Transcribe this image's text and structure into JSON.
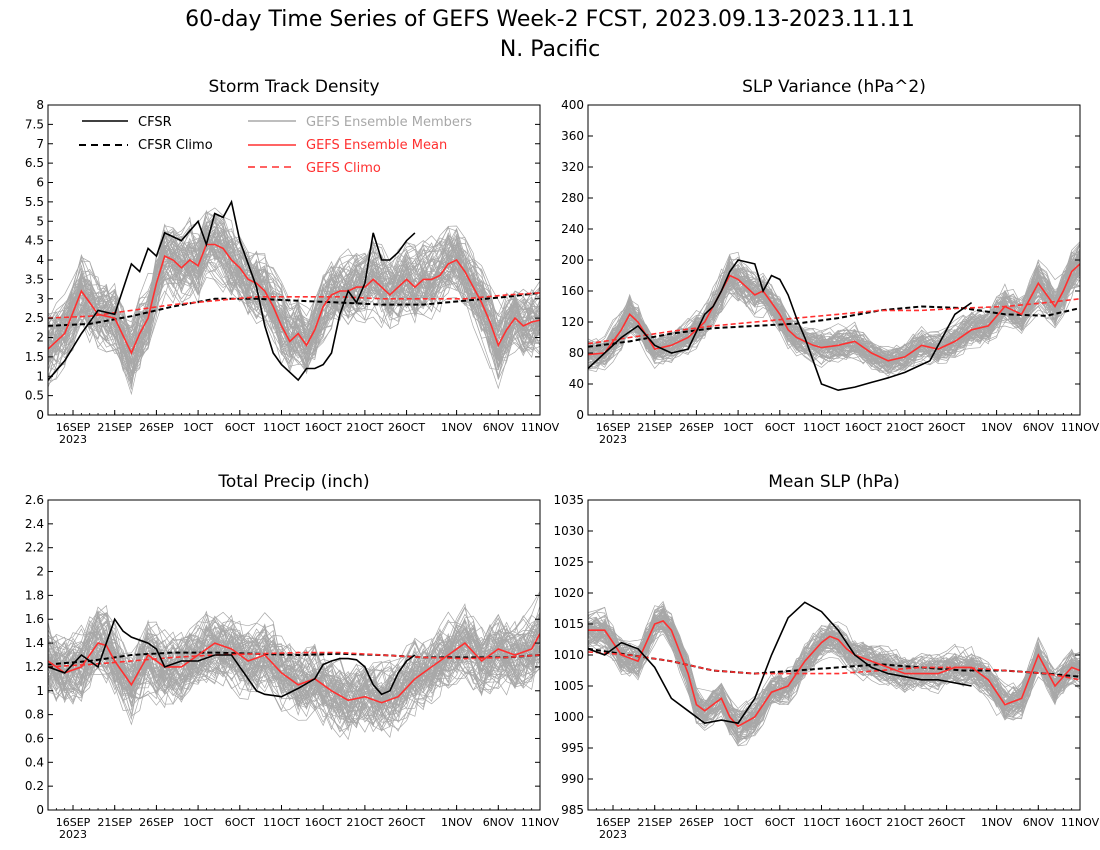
{
  "figure": {
    "title_line1": "60-day Time Series of GEFS Week-2 FCST, 2023.09.13-2023.11.11",
    "title_line2": "N. Pacific"
  },
  "legend": {
    "cfsr": "CFSR",
    "cfsr_climo": "CFSR Climo",
    "members": "GEFS Ensemble Members",
    "mean": "GEFS Ensemble Mean",
    "gefs_climo": "GEFS Climo"
  },
  "colors": {
    "cfsr": "#000000",
    "cfsr_climo": "#000000",
    "members": "#a8a8a8",
    "mean": "#ff3030",
    "gefs_climo": "#ff3030"
  },
  "x_axis": {
    "labels": [
      "16SEP",
      "21SEP",
      "26SEP",
      "1OCT",
      "6OCT",
      "11OCT",
      "16OCT",
      "21OCT",
      "26OCT",
      "1NOV",
      "6NOV",
      "11NOV"
    ],
    "label_days": [
      3,
      8,
      13,
      18,
      23,
      28,
      33,
      38,
      43,
      49,
      54,
      59
    ],
    "year_label": "2023",
    "ndays": 60
  },
  "chart_data": [
    {
      "type": "line",
      "title": "Storm Track Density",
      "ylim": [
        0,
        8
      ],
      "yticks": [
        "0",
        "0.5",
        "1",
        "1.5",
        "2",
        "2.5",
        "3",
        "3.5",
        "4",
        "4.5",
        "5",
        "5.5",
        "6",
        "6.5",
        "7",
        "7.5",
        "8"
      ],
      "series": [
        {
          "name": "CFSR",
          "x": [
            0,
            2,
            4,
            6,
            8,
            10,
            11,
            12,
            13,
            14,
            16,
            18,
            19,
            20,
            21,
            22,
            23,
            25,
            26,
            27,
            28,
            30,
            31,
            32,
            33,
            34,
            35,
            36,
            37,
            38,
            39,
            40,
            41,
            42,
            43,
            44
          ],
          "values": [
            0.9,
            1.4,
            2.1,
            2.7,
            2.6,
            3.9,
            3.7,
            4.3,
            4.1,
            4.7,
            4.5,
            5.0,
            4.4,
            5.2,
            5.1,
            5.5,
            4.5,
            3.3,
            2.3,
            1.6,
            1.3,
            0.9,
            1.2,
            1.2,
            1.3,
            1.6,
            2.6,
            3.2,
            2.9,
            3.4,
            4.7,
            4.0,
            4.0,
            4.2,
            4.5,
            4.7
          ]
        },
        {
          "name": "CFSR Climo",
          "x": [
            0,
            5,
            10,
            15,
            20,
            25,
            30,
            35,
            40,
            45,
            50,
            55,
            59
          ],
          "values": [
            2.3,
            2.35,
            2.55,
            2.8,
            3.0,
            3.0,
            2.95,
            2.9,
            2.85,
            2.85,
            2.95,
            3.05,
            3.15
          ]
        },
        {
          "name": "GEFS Ensemble Mean",
          "x": [
            0,
            2,
            4,
            5,
            6,
            8,
            10,
            11,
            12,
            13,
            14,
            15,
            16,
            17,
            18,
            19,
            20,
            21,
            22,
            23,
            24,
            25,
            26,
            27,
            28,
            29,
            30,
            31,
            32,
            33,
            34,
            35,
            36,
            37,
            38,
            39,
            40,
            41,
            42,
            43,
            44,
            45,
            46,
            47,
            48,
            49,
            50,
            51,
            52,
            53,
            54,
            55,
            56,
            57,
            58,
            59
          ],
          "values": [
            1.7,
            2.1,
            3.2,
            2.9,
            2.6,
            2.5,
            1.6,
            2.1,
            2.5,
            3.4,
            4.1,
            4.0,
            3.8,
            4.0,
            3.85,
            4.4,
            4.4,
            4.3,
            4.0,
            3.8,
            3.5,
            3.4,
            3.2,
            2.8,
            2.3,
            1.9,
            2.1,
            1.8,
            2.2,
            2.8,
            3.1,
            3.2,
            3.2,
            3.3,
            3.3,
            3.5,
            3.3,
            3.1,
            3.3,
            3.5,
            3.3,
            3.5,
            3.5,
            3.6,
            3.9,
            4.0,
            3.7,
            3.3,
            2.9,
            2.4,
            1.8,
            2.2,
            2.5,
            2.3,
            2.4,
            2.45
          ]
        },
        {
          "name": "GEFS Climo",
          "x": [
            0,
            5,
            10,
            15,
            20,
            25,
            30,
            35,
            40,
            45,
            50,
            55,
            59
          ],
          "values": [
            2.5,
            2.55,
            2.7,
            2.85,
            2.95,
            3.05,
            3.05,
            3.05,
            3.0,
            3.0,
            3.0,
            3.1,
            3.15
          ]
        }
      ]
    },
    {
      "type": "line",
      "title": "SLP Variance (hPa^2)",
      "ylim": [
        0,
        400
      ],
      "yticks": [
        "0",
        "40",
        "80",
        "120",
        "160",
        "200",
        "240",
        "280",
        "320",
        "360",
        "400"
      ],
      "series": [
        {
          "name": "CFSR",
          "x": [
            0,
            2,
            4,
            6,
            8,
            10,
            12,
            14,
            15,
            16,
            17,
            18,
            20,
            21,
            22,
            23,
            24,
            25,
            26,
            27,
            28,
            30,
            32,
            34,
            35,
            36,
            38,
            39,
            40,
            41,
            42,
            43,
            44,
            46
          ],
          "values": [
            60,
            80,
            100,
            115,
            90,
            80,
            85,
            130,
            140,
            160,
            185,
            200,
            195,
            160,
            180,
            175,
            155,
            125,
            100,
            70,
            40,
            32,
            36,
            42,
            45,
            48,
            55,
            60,
            65,
            70,
            90,
            110,
            130,
            145
          ]
        },
        {
          "name": "CFSR Climo",
          "x": [
            0,
            5,
            10,
            15,
            20,
            25,
            30,
            35,
            40,
            45,
            50,
            55,
            59
          ],
          "values": [
            88,
            95,
            105,
            112,
            115,
            118,
            125,
            135,
            140,
            138,
            130,
            128,
            138
          ]
        },
        {
          "name": "GEFS Ensemble Mean",
          "x": [
            0,
            2,
            4,
            5,
            6,
            8,
            10,
            12,
            14,
            16,
            17,
            18,
            19,
            20,
            21,
            22,
            23,
            24,
            25,
            26,
            27,
            28,
            30,
            32,
            34,
            36,
            38,
            40,
            42,
            44,
            46,
            48,
            50,
            52,
            54,
            56,
            57,
            58,
            59
          ],
          "values": [
            78,
            80,
            110,
            130,
            120,
            85,
            90,
            100,
            120,
            160,
            180,
            175,
            165,
            155,
            160,
            145,
            130,
            110,
            100,
            95,
            90,
            87,
            90,
            95,
            80,
            70,
            75,
            90,
            85,
            95,
            110,
            115,
            140,
            130,
            170,
            140,
            160,
            185,
            195
          ]
        },
        {
          "name": "GEFS Climo",
          "x": [
            0,
            5,
            10,
            15,
            20,
            25,
            30,
            35,
            40,
            45,
            50,
            55,
            59
          ],
          "values": [
            92,
            100,
            108,
            115,
            120,
            125,
            130,
            135,
            135,
            138,
            140,
            145,
            150
          ]
        }
      ]
    },
    {
      "type": "line",
      "title": "Total Precip (inch)",
      "ylim": [
        0,
        2.6
      ],
      "yticks": [
        "0",
        "0.2",
        "0.4",
        "0.6",
        "0.8",
        "1",
        "1.2",
        "1.4",
        "1.6",
        "1.8",
        "2",
        "2.2",
        "2.4",
        "2.6"
      ],
      "series": [
        {
          "name": "CFSR",
          "x": [
            0,
            2,
            4,
            6,
            8,
            9,
            10,
            12,
            13,
            14,
            16,
            18,
            20,
            22,
            24,
            25,
            26,
            28,
            30,
            32,
            33,
            34,
            35,
            36,
            37,
            38,
            39,
            40,
            41,
            42,
            43,
            44
          ],
          "values": [
            1.2,
            1.15,
            1.3,
            1.2,
            1.6,
            1.5,
            1.45,
            1.4,
            1.35,
            1.2,
            1.25,
            1.25,
            1.3,
            1.3,
            1.1,
            1.0,
            0.97,
            0.95,
            1.02,
            1.1,
            1.22,
            1.25,
            1.27,
            1.27,
            1.26,
            1.2,
            1.05,
            0.97,
            1.0,
            1.15,
            1.25,
            1.3
          ]
        },
        {
          "name": "CFSR Climo",
          "x": [
            0,
            5,
            10,
            15,
            20,
            25,
            30,
            35,
            40,
            45,
            50,
            55,
            59
          ],
          "values": [
            1.22,
            1.25,
            1.3,
            1.32,
            1.32,
            1.31,
            1.3,
            1.31,
            1.3,
            1.28,
            1.28,
            1.28,
            1.3
          ]
        },
        {
          "name": "GEFS Ensemble Mean",
          "x": [
            0,
            2,
            4,
            6,
            7,
            8,
            10,
            12,
            14,
            16,
            18,
            20,
            22,
            24,
            26,
            28,
            30,
            32,
            34,
            36,
            38,
            40,
            42,
            44,
            46,
            48,
            50,
            52,
            54,
            56,
            58,
            59
          ],
          "values": [
            1.25,
            1.15,
            1.2,
            1.4,
            1.38,
            1.25,
            1.05,
            1.3,
            1.2,
            1.2,
            1.3,
            1.4,
            1.35,
            1.25,
            1.3,
            1.15,
            1.05,
            1.1,
            1.0,
            0.92,
            0.95,
            0.9,
            0.95,
            1.1,
            1.2,
            1.3,
            1.4,
            1.25,
            1.35,
            1.3,
            1.35,
            1.48
          ]
        },
        {
          "name": "GEFS Climo",
          "x": [
            0,
            5,
            10,
            15,
            20,
            25,
            30,
            35,
            40,
            45,
            50,
            55,
            59
          ],
          "values": [
            1.2,
            1.22,
            1.25,
            1.28,
            1.3,
            1.31,
            1.32,
            1.32,
            1.3,
            1.28,
            1.27,
            1.28,
            1.3
          ]
        }
      ]
    },
    {
      "type": "line",
      "title": "Mean SLP (hPa)",
      "ylim": [
        985,
        1035
      ],
      "yticks": [
        "985",
        "990",
        "995",
        "1000",
        "1005",
        "1010",
        "1015",
        "1020",
        "1025",
        "1030",
        "1035"
      ],
      "series": [
        {
          "name": "CFSR",
          "x": [
            0,
            2,
            4,
            6,
            8,
            10,
            12,
            14,
            16,
            18,
            20,
            22,
            24,
            26,
            28,
            30,
            32,
            34,
            36,
            38,
            40,
            42,
            44,
            46
          ],
          "values": [
            1011,
            1010,
            1012,
            1011,
            1008,
            1003,
            1001,
            999,
            999.5,
            999,
            1003,
            1010,
            1016,
            1018.5,
            1017,
            1014,
            1010,
            1008,
            1007,
            1006.5,
            1006,
            1006,
            1005.5,
            1005
          ]
        },
        {
          "name": "CFSR Climo",
          "x": [
            0,
            5,
            10,
            15,
            20,
            25,
            30,
            35,
            40,
            45,
            50,
            55,
            59
          ],
          "values": [
            1011,
            1010,
            1009,
            1007.5,
            1007,
            1007.5,
            1008,
            1008.5,
            1008,
            1007.5,
            1007.5,
            1007,
            1006.5
          ]
        },
        {
          "name": "GEFS Ensemble Mean",
          "x": [
            0,
            2,
            4,
            6,
            8,
            9,
            10,
            12,
            13,
            14,
            16,
            17,
            18,
            20,
            22,
            24,
            26,
            28,
            29,
            30,
            31,
            32,
            34,
            36,
            38,
            40,
            42,
            44,
            46,
            48,
            50,
            52,
            54,
            56,
            58,
            59
          ],
          "values": [
            1014,
            1014,
            1010,
            1009,
            1015,
            1015.5,
            1014,
            1007,
            1002,
            1001,
            1003,
            1000,
            998.5,
            1000,
            1004,
            1005,
            1009,
            1012,
            1013,
            1012.5,
            1011,
            1010,
            1009,
            1008,
            1007,
            1007,
            1007,
            1008,
            1008,
            1006,
            1002,
            1003,
            1010,
            1005,
            1008,
            1007.5
          ]
        },
        {
          "name": "GEFS Climo",
          "x": [
            0,
            5,
            10,
            15,
            20,
            25,
            30,
            35,
            40,
            45,
            50,
            55,
            59
          ],
          "values": [
            1010.5,
            1010,
            1009,
            1007.5,
            1007,
            1007,
            1007,
            1007.5,
            1008,
            1008,
            1007.5,
            1007,
            1006
          ]
        }
      ]
    }
  ]
}
